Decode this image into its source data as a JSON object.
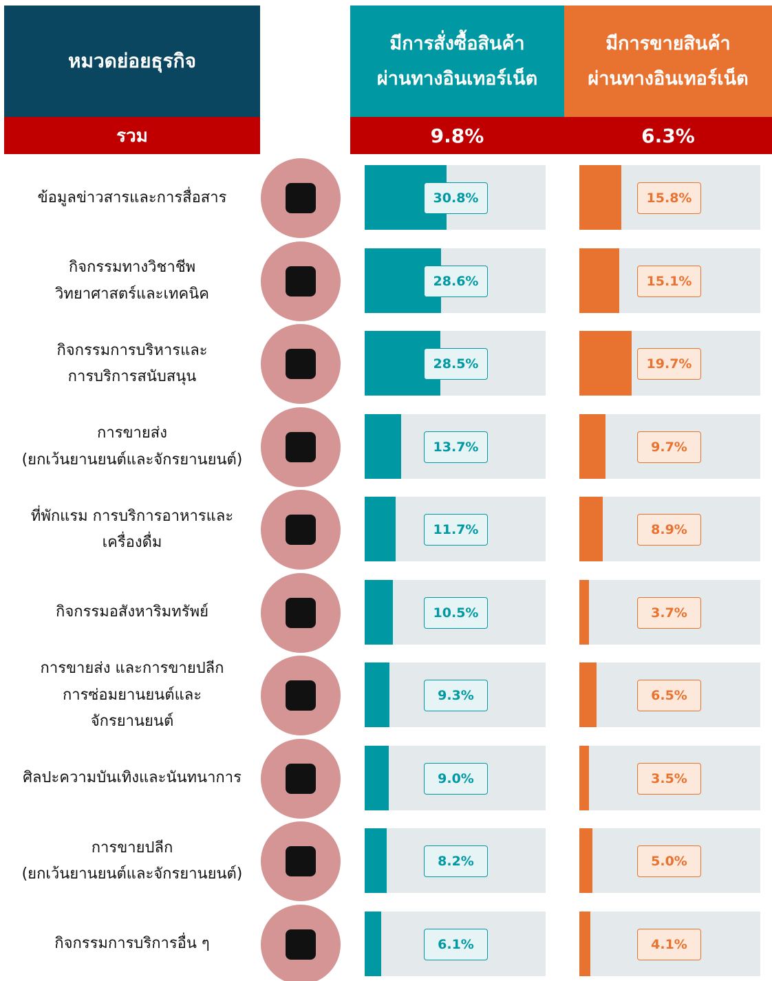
{
  "chart_data": {
    "type": "barh",
    "category_header": "หมวดย่อยธุรกิจ",
    "total_header": "รวม",
    "categories": [
      "ข้อมูลข่าวสารและการสื่อสาร",
      "กิจกรรมทางวิชาชีพ\nวิทยาศาสตร์และเทคนิค",
      "กิจกรรมการบริหารและ\nการบริการสนับสนุน",
      "การขายส่ง\n(ยกเว้นยานยนต์และจักรยานยนต์)",
      "ที่พักแรม การบริการอาหารและ\nเครื่องดื่ม",
      "กิจกรรมอสังหาริมทรัพย์",
      "การขายส่ง และการขายปลีก\nการซ่อมยานยนต์และ\nจักรยานยนต์",
      "ศิลปะความบันเทิงและนันทนาการ",
      "การขายปลีก\n(ยกเว้นยานยนต์และจักรยานยนต์)",
      "กิจกรรมการบริการอื่น ๆ"
    ],
    "xlim": [
      0,
      68
    ],
    "series": [
      {
        "name": "มีการสั่งซื้อสินค้า\nผ่านทางอินเทอร์เน็ต",
        "color": "#0099a3",
        "total": 9.8,
        "total_label": "9.8%",
        "values": [
          30.8,
          28.6,
          28.5,
          13.7,
          11.7,
          10.5,
          9.3,
          9.0,
          8.2,
          6.1
        ],
        "value_labels": [
          "30.8%",
          "28.6%",
          "28.5%",
          "13.7%",
          "11.7%",
          "10.5%",
          "9.3%",
          "9.0%",
          "8.2%",
          "6.1%"
        ]
      },
      {
        "name": "มีการขายสินค้า\nผ่านทางอินเทอร์เน็ต",
        "color": "#e87330",
        "total": 6.3,
        "total_label": "6.3%",
        "values": [
          15.8,
          15.1,
          19.7,
          9.7,
          8.9,
          3.7,
          6.5,
          3.5,
          5.0,
          4.1
        ],
        "value_labels": [
          "15.8%",
          "15.1%",
          "19.7%",
          "9.7%",
          "8.9%",
          "3.7%",
          "6.5%",
          "3.5%",
          "5.0%",
          "4.1%"
        ]
      }
    ]
  }
}
